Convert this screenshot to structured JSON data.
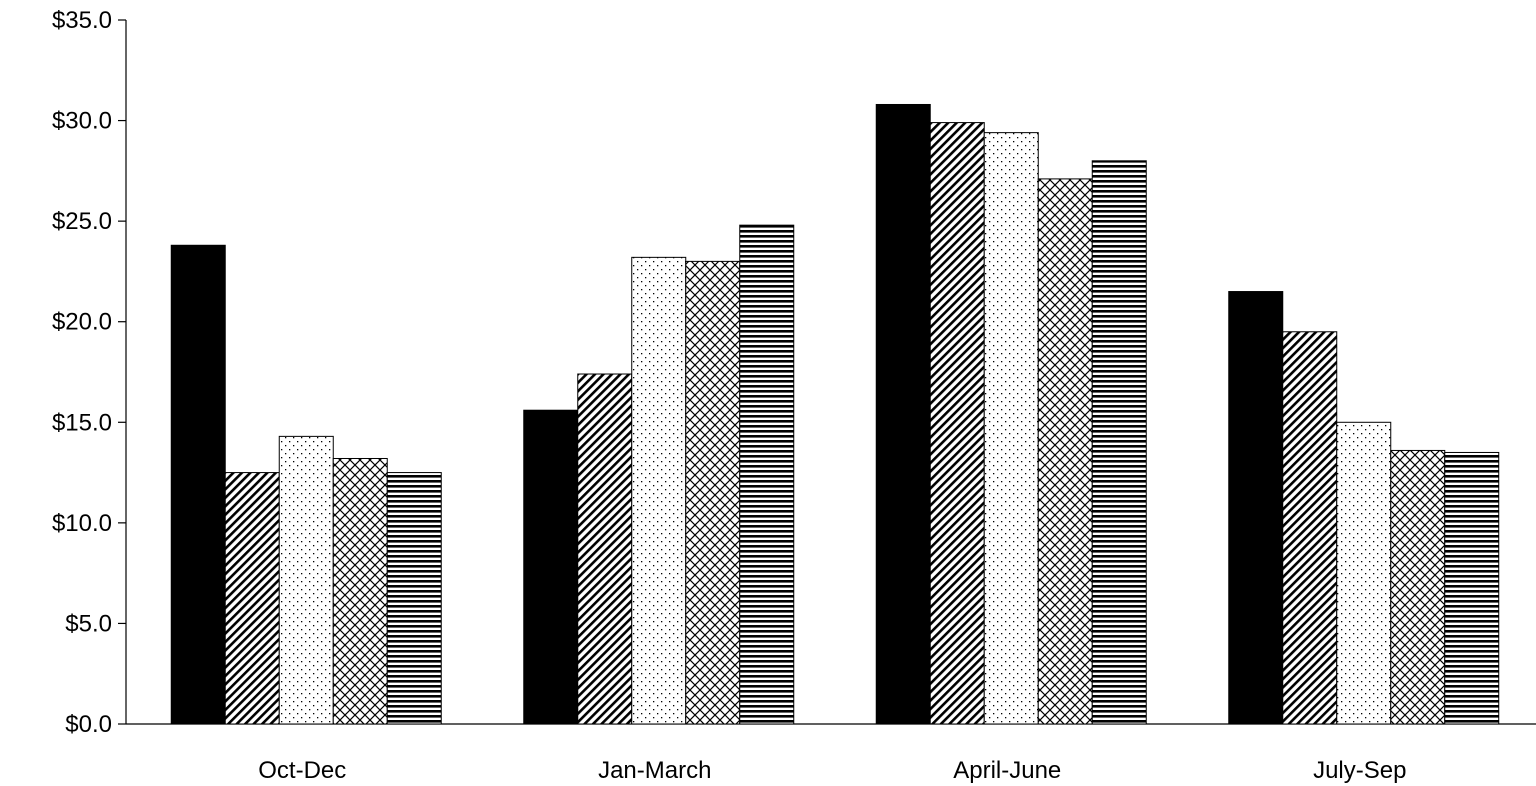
{
  "chart_data": {
    "type": "bar",
    "title": "",
    "xlabel": "",
    "ylabel": "",
    "ylim": [
      0,
      35
    ],
    "yticks": [
      0,
      5,
      10,
      15,
      20,
      25,
      30,
      35
    ],
    "ytick_labels": [
      "$0.0",
      "$5.0",
      "$10.0",
      "$15.0",
      "$20.0",
      "$25.0",
      "$30.0",
      "$35.0"
    ],
    "grid": false,
    "legend": "none",
    "categories": [
      "Oct-Dec",
      "Jan-March",
      "April-June",
      "July-Sep"
    ],
    "series": [
      {
        "pattern": "solid-black",
        "values": [
          23.8,
          15.6,
          30.8,
          21.5
        ]
      },
      {
        "pattern": "diagonal-hatch",
        "values": [
          12.5,
          17.4,
          29.9,
          19.5
        ]
      },
      {
        "pattern": "dots",
        "values": [
          14.3,
          23.2,
          29.4,
          15.0
        ]
      },
      {
        "pattern": "crosshatch",
        "values": [
          13.2,
          23.0,
          27.1,
          13.6
        ]
      },
      {
        "pattern": "horizontal-lines",
        "values": [
          12.5,
          24.8,
          28.0,
          13.5
        ]
      }
    ]
  }
}
